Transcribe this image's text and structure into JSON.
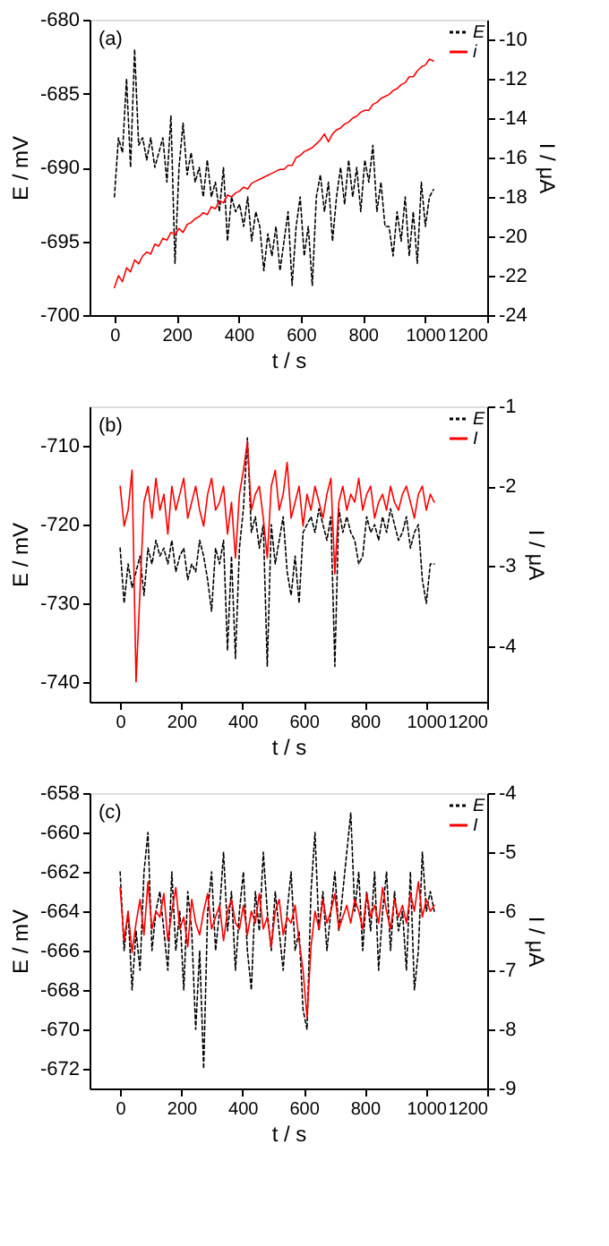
{
  "chart_data": [
    {
      "type": "line",
      "annotations": [
        "(a)"
      ],
      "xlabel": "t / s",
      "ylabel": "E / mV",
      "y2label": "I / μA",
      "xlim": [
        -80,
        1200
      ],
      "xticks": [
        0,
        200,
        400,
        600,
        800,
        1000,
        1200
      ],
      "ylim": [
        -700,
        -680
      ],
      "yticks": [
        -700,
        -695,
        -690,
        -685,
        -680
      ],
      "y2lim": [
        -24,
        -9
      ],
      "y2ticks": [
        -24,
        -22,
        -20,
        -18,
        -16,
        -14,
        -12,
        -10
      ],
      "grid": false,
      "legend": "top right",
      "marker": "none",
      "x": [
        0,
        13,
        26,
        39,
        52,
        65,
        78,
        91,
        104,
        117,
        130,
        143,
        156,
        169,
        182,
        195,
        208,
        221,
        234,
        247,
        260,
        273,
        286,
        299,
        312,
        325,
        338,
        351,
        364,
        377,
        390,
        403,
        416,
        429,
        442,
        455,
        468,
        481,
        494,
        507,
        520,
        533,
        546,
        559,
        572,
        585,
        598,
        611,
        624,
        637,
        650,
        663,
        676,
        689,
        702,
        715,
        728,
        741,
        754,
        767,
        780,
        793,
        806,
        819,
        832,
        845,
        858,
        871,
        884,
        897,
        910,
        923,
        936,
        949,
        962,
        975,
        988,
        1001,
        1014,
        1027
      ],
      "series": [
        {
          "name": "E",
          "color": "#000000",
          "line_style": "dotted",
          "values": [
            -692,
            -688,
            -689,
            -684,
            -690,
            -682,
            -688.5,
            -688,
            -689.5,
            -688,
            -690,
            -689,
            -688,
            -691,
            -686.5,
            -696.5,
            -690,
            -687,
            -690.5,
            -689,
            -691,
            -690,
            -692,
            -689.5,
            -692,
            -691,
            -693,
            -690,
            -695,
            -692,
            -693,
            -692.5,
            -694,
            -692,
            -695,
            -693,
            -694,
            -697,
            -694.5,
            -696,
            -694,
            -697,
            -695,
            -693,
            -698,
            -694,
            -692,
            -696,
            -694,
            -698,
            -692,
            -690.5,
            -693,
            -691,
            -695,
            -692,
            -690,
            -692.5,
            -689.5,
            -692,
            -690,
            -693,
            -689.5,
            -691,
            -688.5,
            -693,
            -691,
            -694,
            -694,
            -696,
            -693,
            -695,
            -692,
            -696,
            -693,
            -696.5,
            -691,
            -694,
            -692,
            -691.5
          ]
        },
        {
          "name": "i",
          "color": "#ff0000",
          "line_style": "solid",
          "axis": "y2",
          "values": [
            -22.6,
            -22,
            -22.3,
            -21.6,
            -21.8,
            -21.2,
            -21.4,
            -21,
            -20.8,
            -20.9,
            -20.4,
            -20.5,
            -20.1,
            -20.2,
            -19.8,
            -19.9,
            -19.6,
            -19.8,
            -19.4,
            -19.3,
            -19.1,
            -19.0,
            -18.8,
            -18.9,
            -18.5,
            -18.6,
            -18.2,
            -18.3,
            -17.9,
            -18.0,
            -17.8,
            -17.7,
            -17.5,
            -17.6,
            -17.3,
            -17.2,
            -17.1,
            -17.0,
            -16.9,
            -16.8,
            -16.7,
            -16.6,
            -16.6,
            -16.4,
            -16.4,
            -16.0,
            -15.9,
            -15.7,
            -15.6,
            -15.5,
            -15.3,
            -15.1,
            -14.8,
            -15.2,
            -14.8,
            -14.6,
            -14.5,
            -14.3,
            -14.2,
            -14.0,
            -13.9,
            -13.7,
            -13.6,
            -13.6,
            -13.3,
            -13.2,
            -13.0,
            -12.9,
            -12.8,
            -12.6,
            -12.5,
            -12.3,
            -12.2,
            -11.9,
            -11.9,
            -11.6,
            -11.4,
            -11.3,
            -11.0,
            -11.1
          ]
        }
      ]
    },
    {
      "type": "line",
      "annotations": [
        "(b)"
      ],
      "xlabel": "t / s",
      "ylabel": "E / mV",
      "y2label": "I / μA",
      "xlim": [
        -100,
        1200
      ],
      "xticks": [
        0,
        200,
        400,
        600,
        800,
        1000,
        1200
      ],
      "ylim": [
        -742.5,
        -705
      ],
      "yticks": [
        -740,
        -730,
        -720,
        -710
      ],
      "y2lim": [
        -4.7,
        -1
      ],
      "y2ticks": [
        -4,
        -3,
        -2,
        -1
      ],
      "grid": false,
      "legend": "top right",
      "marker": "none",
      "x": [
        0,
        13,
        26,
        39,
        52,
        65,
        78,
        91,
        104,
        117,
        130,
        143,
        156,
        169,
        182,
        195,
        208,
        221,
        234,
        247,
        260,
        273,
        286,
        299,
        312,
        325,
        338,
        351,
        364,
        377,
        390,
        403,
        416,
        429,
        442,
        455,
        468,
        481,
        494,
        507,
        520,
        533,
        546,
        559,
        572,
        585,
        598,
        611,
        624,
        637,
        650,
        663,
        676,
        689,
        702,
        715,
        728,
        741,
        754,
        767,
        780,
        793,
        806,
        819,
        832,
        845,
        858,
        871,
        884,
        897,
        910,
        923,
        936,
        949,
        962,
        975,
        988,
        1001,
        1014,
        1027
      ],
      "series": [
        {
          "name": "E",
          "color": "#000000",
          "line_style": "dotted",
          "values": [
            -723,
            -730,
            -725,
            -728,
            -726,
            -724,
            -729,
            -723,
            -725,
            -722,
            -724,
            -723,
            -725,
            -722,
            -726,
            -724,
            -723,
            -727,
            -725,
            -726,
            -722,
            -724,
            -727,
            -731,
            -723,
            -725,
            -722,
            -736,
            -724,
            -737,
            -723,
            -718,
            -709,
            -721,
            -719,
            -723,
            -720,
            -738,
            -720,
            -725,
            -722,
            -719,
            -726,
            -729,
            -724,
            -730,
            -721,
            -720,
            -719,
            -721,
            -718,
            -720,
            -722,
            -719,
            -738,
            -718,
            -721,
            -719,
            -721,
            -722,
            -725,
            -724,
            -719,
            -721,
            -720,
            -722,
            -719,
            -721,
            -718,
            -720,
            -722,
            -721,
            -719,
            -723,
            -721,
            -720,
            -727,
            -730,
            -725,
            -725
          ]
        },
        {
          "name": "I",
          "color": "#ff0000",
          "line_style": "solid",
          "axis": "y2",
          "values": [
            -2.0,
            -2.5,
            -2.3,
            -1.8,
            -4.45,
            -3.3,
            -2.2,
            -2.0,
            -2.4,
            -1.9,
            -2.3,
            -2.1,
            -2.6,
            -2.0,
            -2.3,
            -2.1,
            -1.9,
            -2.4,
            -2.2,
            -2.0,
            -2.3,
            -2.5,
            -2.1,
            -1.9,
            -2.3,
            -2.2,
            -2.0,
            -2.6,
            -2.2,
            -2.9,
            -2.1,
            -1.8,
            -1.45,
            -2.3,
            -2.1,
            -2.0,
            -2.4,
            -2.9,
            -2.0,
            -1.8,
            -2.3,
            -2.1,
            -1.7,
            -2.4,
            -2.2,
            -2.0,
            -2.5,
            -2.1,
            -2.3,
            -2.0,
            -2.2,
            -2.4,
            -2.1,
            -1.9,
            -3.1,
            -2.2,
            -2.0,
            -2.3,
            -2.1,
            -2.2,
            -1.9,
            -2.3,
            -2.1,
            -2.0,
            -2.4,
            -2.2,
            -2.1,
            -2.3,
            -2.0,
            -2.2,
            -2.3,
            -2.1,
            -2.0,
            -2.2,
            -2.4,
            -2.1,
            -2.0,
            -2.3,
            -2.1,
            -2.2
          ]
        }
      ]
    },
    {
      "type": "line",
      "annotations": [
        "(c)"
      ],
      "xlabel": "t / s",
      "ylabel": "E / mV",
      "y2label": "I / μA",
      "xlim": [
        -100,
        1200
      ],
      "xticks": [
        0,
        200,
        400,
        600,
        800,
        1000,
        1200
      ],
      "ylim": [
        -673,
        -658
      ],
      "yticks": [
        -672,
        -670,
        -668,
        -666,
        -664,
        -662,
        -660,
        -658
      ],
      "y2lim": [
        -9,
        -4
      ],
      "y2ticks": [
        -9,
        -8,
        -7,
        -6,
        -5,
        -4
      ],
      "grid": false,
      "legend": "top right",
      "marker": "none",
      "x": [
        0,
        13,
        26,
        39,
        52,
        65,
        78,
        91,
        104,
        117,
        130,
        143,
        156,
        169,
        182,
        195,
        208,
        221,
        234,
        247,
        260,
        273,
        286,
        299,
        312,
        325,
        338,
        351,
        364,
        377,
        390,
        403,
        416,
        429,
        442,
        455,
        468,
        481,
        494,
        507,
        520,
        533,
        546,
        559,
        572,
        585,
        598,
        611,
        624,
        637,
        650,
        663,
        676,
        689,
        702,
        715,
        728,
        741,
        754,
        767,
        780,
        793,
        806,
        819,
        832,
        845,
        858,
        871,
        884,
        897,
        910,
        923,
        936,
        949,
        962,
        975,
        988,
        1001,
        1014,
        1027
      ],
      "series": [
        {
          "name": "E",
          "color": "#000000",
          "line_style": "dotted",
          "values": [
            -662,
            -666,
            -664,
            -668,
            -665,
            -667,
            -662,
            -660,
            -666,
            -664,
            -663,
            -665,
            -667,
            -662,
            -666,
            -664,
            -668,
            -663,
            -665,
            -670,
            -666,
            -672,
            -664,
            -662,
            -666,
            -664,
            -661,
            -665,
            -663,
            -667,
            -664,
            -662,
            -666,
            -668,
            -663,
            -665,
            -661,
            -664,
            -666,
            -663,
            -665,
            -667,
            -664,
            -662,
            -666,
            -665,
            -669,
            -670,
            -663,
            -660,
            -665,
            -663,
            -666,
            -664,
            -662,
            -665,
            -663,
            -661,
            -659,
            -664,
            -662,
            -666,
            -663,
            -665,
            -662,
            -667,
            -664,
            -662,
            -666,
            -663,
            -665,
            -664,
            -667,
            -662,
            -668,
            -666,
            -661,
            -664,
            -663,
            -664
          ]
        },
        {
          "name": "I",
          "color": "#ff0000",
          "line_style": "solid",
          "axis": "y2",
          "values": [
            -5.6,
            -6.5,
            -6.0,
            -6.7,
            -6.2,
            -5.8,
            -6.4,
            -5.5,
            -6.3,
            -6.0,
            -6.1,
            -5.7,
            -6.5,
            -6.0,
            -5.6,
            -6.3,
            -6.1,
            -6.6,
            -5.8,
            -6.2,
            -6.4,
            -6.0,
            -5.7,
            -6.3,
            -6.1,
            -5.9,
            -6.5,
            -6.0,
            -5.8,
            -6.2,
            -6.3,
            -5.9,
            -6.4,
            -6.0,
            -6.2,
            -5.7,
            -6.3,
            -6.1,
            -6.6,
            -6.0,
            -5.8,
            -6.4,
            -6.1,
            -6.2,
            -5.9,
            -6.5,
            -7.0,
            -7.8,
            -6.6,
            -6.0,
            -6.3,
            -5.8,
            -6.2,
            -6.0,
            -5.7,
            -6.3,
            -6.1,
            -5.9,
            -6.2,
            -5.8,
            -6.0,
            -6.3,
            -5.7,
            -6.1,
            -5.9,
            -6.2,
            -5.6,
            -6.0,
            -6.3,
            -5.8,
            -6.1,
            -5.9,
            -6.2,
            -5.7,
            -6.0,
            -5.5,
            -6.1,
            -5.8,
            -6.0,
            -5.9
          ]
        }
      ]
    }
  ]
}
